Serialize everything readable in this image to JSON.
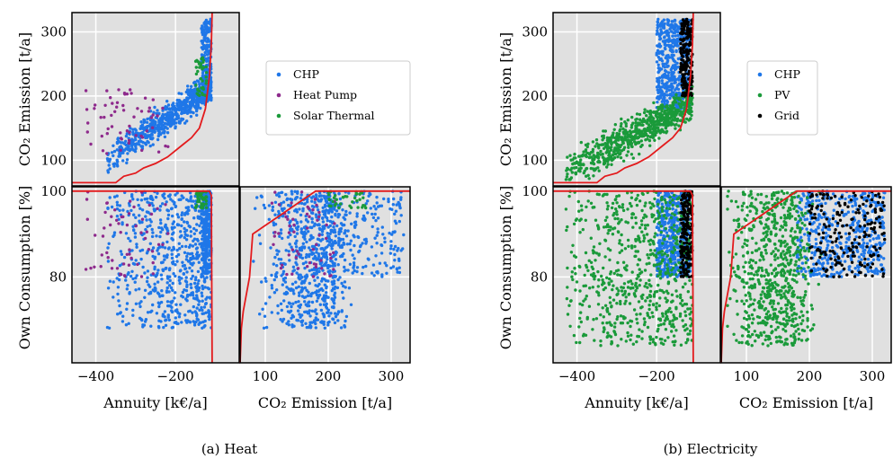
{
  "chart_data": [
    {
      "type": "scatter",
      "caption": "(a) Heat",
      "legend": [
        "CHP",
        "Heat Pump",
        "Solar Thermal"
      ],
      "colors": {
        "CHP": "#1f77e8",
        "Heat Pump": "#8e2a8c",
        "Solar Thermal": "#1a9a3a",
        "front": "#e31a1c",
        "panel_bg": "#e0e0e0"
      },
      "axes": {
        "annuity": {
          "label": "Annuity [k€/a]",
          "range": [
            -460,
            -40
          ],
          "ticks": [
            "-400",
            "-200"
          ]
        },
        "co2": {
          "label": "CO₂ Emission [t/a]",
          "range": [
            60,
            330
          ],
          "ticks": [
            "100",
            "200",
            "300"
          ]
        },
        "own": {
          "label": "Own Consumption [%]",
          "range": [
            60,
            101
          ],
          "ticks": [
            "80",
            "100"
          ]
        }
      },
      "front_co2_vs_annuity": [
        [
          -460,
          65
        ],
        [
          -350,
          65
        ],
        [
          -330,
          75
        ],
        [
          -300,
          80
        ],
        [
          -280,
          88
        ],
        [
          -250,
          95
        ],
        [
          -220,
          105
        ],
        [
          -200,
          115
        ],
        [
          -180,
          125
        ],
        [
          -160,
          135
        ],
        [
          -140,
          150
        ],
        [
          -125,
          180
        ],
        [
          -115,
          230
        ],
        [
          -110,
          280
        ],
        [
          -108,
          330
        ]
      ],
      "front_own_vs_annuity": [
        [
          -460,
          100
        ],
        [
          -115,
          100
        ],
        [
          -110,
          99
        ],
        [
          -108,
          60
        ]
      ],
      "front_own_vs_co2": [
        [
          60,
          60
        ],
        [
          62,
          68
        ],
        [
          65,
          72
        ],
        [
          70,
          76
        ],
        [
          75,
          80
        ],
        [
          80,
          90
        ],
        [
          100,
          92
        ],
        [
          120,
          94
        ],
        [
          140,
          96
        ],
        [
          160,
          98
        ],
        [
          180,
          100
        ],
        [
          330,
          100
        ]
      ]
    },
    {
      "type": "scatter",
      "caption": "(b) Electricity",
      "legend": [
        "CHP",
        "PV",
        "Grid"
      ],
      "colors": {
        "CHP": "#1f77e8",
        "PV": "#1a9a3a",
        "Grid": "#000000",
        "front": "#e31a1c",
        "panel_bg": "#e0e0e0"
      },
      "axes": {
        "annuity": {
          "label": "Annuity [k€/a]",
          "range": [
            -460,
            -40
          ],
          "ticks": [
            "-400",
            "-200"
          ]
        },
        "co2": {
          "label": "CO₂ Emission [t/a]",
          "range": [
            60,
            330
          ],
          "ticks": [
            "100",
            "200",
            "300"
          ]
        },
        "own": {
          "label": "Own Consumption [%]",
          "range": [
            60,
            101
          ],
          "ticks": [
            "80",
            "100"
          ]
        }
      },
      "front_co2_vs_annuity": [
        [
          -460,
          65
        ],
        [
          -350,
          65
        ],
        [
          -330,
          75
        ],
        [
          -300,
          80
        ],
        [
          -280,
          88
        ],
        [
          -250,
          95
        ],
        [
          -220,
          105
        ],
        [
          -200,
          115
        ],
        [
          -180,
          125
        ],
        [
          -160,
          135
        ],
        [
          -140,
          150
        ],
        [
          -125,
          180
        ],
        [
          -115,
          230
        ],
        [
          -110,
          280
        ],
        [
          -108,
          330
        ]
      ],
      "front_own_vs_annuity": [
        [
          -460,
          100
        ],
        [
          -115,
          100
        ],
        [
          -110,
          99
        ],
        [
          -108,
          60
        ]
      ],
      "front_own_vs_co2": [
        [
          60,
          60
        ],
        [
          62,
          68
        ],
        [
          65,
          72
        ],
        [
          70,
          76
        ],
        [
          75,
          80
        ],
        [
          80,
          90
        ],
        [
          100,
          92
        ],
        [
          120,
          94
        ],
        [
          140,
          96
        ],
        [
          160,
          98
        ],
        [
          180,
          100
        ],
        [
          330,
          100
        ]
      ]
    }
  ]
}
